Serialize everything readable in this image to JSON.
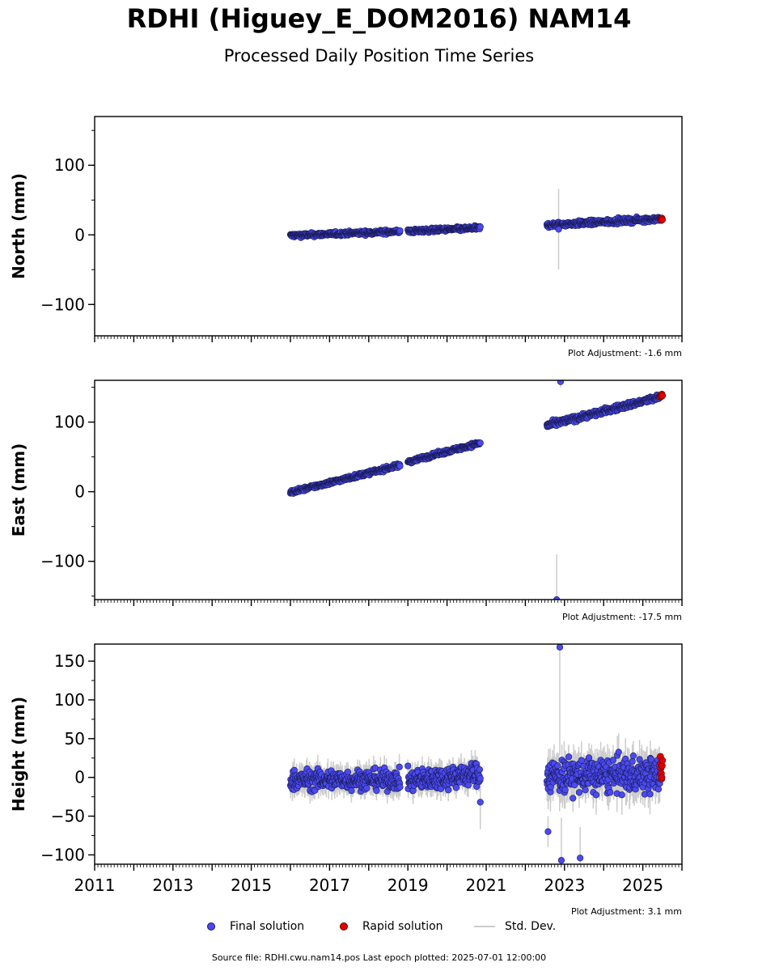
{
  "title": "RDHI (Higuey_E_DOM2016) NAM14",
  "subtitle": "Processed Daily Position Time Series",
  "colors": {
    "final": "#4a4af2",
    "final_edge": "#1a1a55",
    "rapid": "#e00000",
    "stddev": "#cccccc"
  },
  "legend": {
    "final": "Final solution",
    "rapid": "Rapid solution",
    "stddev": "Std. Dev."
  },
  "source_text": "Source file: RDHI.cwu.nam14.pos  Last epoch plotted: 2025-07-01 12:00:00",
  "chart_data": [
    {
      "type": "scatter",
      "component": "North",
      "ylabel": "North (mm)",
      "xlim": [
        2011.0,
        2026.0
      ],
      "ylim": [
        -145,
        170
      ],
      "yticks": [
        -100,
        0,
        100
      ],
      "xticks": [],
      "adjustment": "Plot Adjustment: -1.6 mm",
      "segments": [
        {
          "start": 2016.0,
          "end": 2018.8,
          "y0": -1,
          "y1": 5,
          "noise": 2,
          "sd": 2
        },
        {
          "start": 2019.0,
          "end": 2020.85,
          "y0": 5,
          "y1": 10,
          "noise": 2,
          "sd": 2
        },
        {
          "start": 2022.55,
          "end": 2025.45,
          "y0": 14,
          "y1": 23,
          "noise": 2.5,
          "sd": 3
        }
      ],
      "outliers": [
        {
          "x": 2022.85,
          "y": 8,
          "sd": 58
        }
      ],
      "rapid": {
        "start": 2025.45,
        "end": 2025.5,
        "values": [
          22,
          23,
          21,
          24,
          22
        ]
      }
    },
    {
      "type": "scatter",
      "component": "East",
      "ylabel": "East (mm)",
      "xlim": [
        2011.0,
        2026.0
      ],
      "ylim": [
        -155,
        160
      ],
      "yticks": [
        -100,
        0,
        100
      ],
      "xticks": [],
      "adjustment": "Plot Adjustment: -17.5 mm",
      "segments": [
        {
          "start": 2016.0,
          "end": 2018.8,
          "y0": -1,
          "y1": 38,
          "noise": 2,
          "sd": 2
        },
        {
          "start": 2019.0,
          "end": 2020.85,
          "y0": 43,
          "y1": 70,
          "noise": 2,
          "sd": 2
        },
        {
          "start": 2022.55,
          "end": 2025.45,
          "y0": 95,
          "y1": 136,
          "noise": 3,
          "sd": 3
        }
      ],
      "outliers": [
        {
          "x": 2022.8,
          "y": -155,
          "sd": 65
        },
        {
          "x": 2022.9,
          "y": 158,
          "sd": 8
        }
      ],
      "rapid": {
        "start": 2025.45,
        "end": 2025.5,
        "values": [
          136,
          139,
          137,
          140,
          138
        ]
      }
    },
    {
      "type": "scatter",
      "component": "Height",
      "ylabel": "Height (mm)",
      "xlim": [
        2011.0,
        2026.0
      ],
      "ylim": [
        -112,
        172
      ],
      "yticks": [
        -100,
        -50,
        0,
        50,
        100,
        150
      ],
      "xticks": [
        "2011",
        "2013",
        "2015",
        "2017",
        "2019",
        "2021",
        "2023",
        "2025"
      ],
      "adjustment": "Plot Adjustment: 3.1 mm",
      "segments": [
        {
          "start": 2016.0,
          "end": 2018.8,
          "y0": -3,
          "y1": -3,
          "noise": 9,
          "sd": 12
        },
        {
          "start": 2019.0,
          "end": 2020.85,
          "y0": -5,
          "y1": 5,
          "noise": 10,
          "sd": 12
        },
        {
          "start": 2022.55,
          "end": 2025.45,
          "y0": 2,
          "y1": 3,
          "noise": 16,
          "sd": 18
        }
      ],
      "outliers": [
        {
          "x": 2022.88,
          "y": 168,
          "sd": 140
        },
        {
          "x": 2022.92,
          "y": -107,
          "sd": 55
        },
        {
          "x": 2023.4,
          "y": -104,
          "sd": 40
        },
        {
          "x": 2022.58,
          "y": -70,
          "sd": 20
        },
        {
          "x": 2020.85,
          "y": -32,
          "sd": 35
        }
      ],
      "rapid": {
        "start": 2025.45,
        "end": 2025.5,
        "values": [
          27,
          18,
          12,
          5,
          -2,
          0,
          15,
          22
        ]
      }
    }
  ]
}
